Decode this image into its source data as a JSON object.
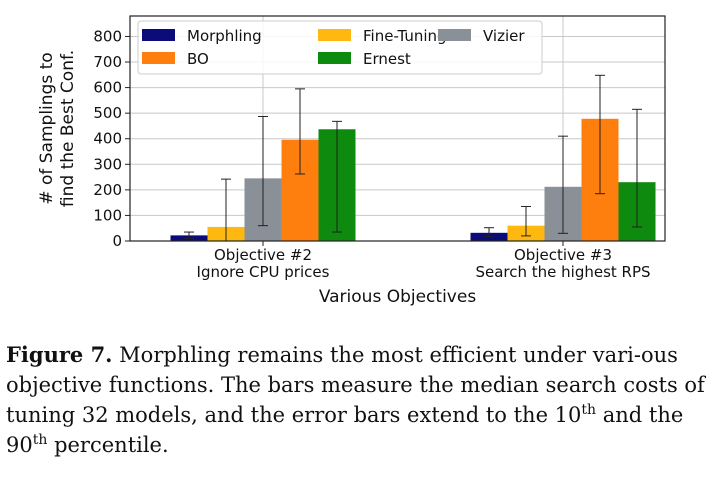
{
  "chart_data": {
    "type": "bar",
    "ylabel": "# of Samplings to\nfind the Best Conf.",
    "xlabel": "Various Objectives",
    "ylim": [
      0,
      880
    ],
    "yticks": [
      0,
      100,
      200,
      300,
      400,
      500,
      600,
      700,
      800
    ],
    "grid": true,
    "legend": "top-left",
    "categories": [
      {
        "label": "Objective #2",
        "sublabel": "Ignore CPU prices"
      },
      {
        "label": "Objective #3",
        "sublabel": "Search the highest RPS"
      }
    ],
    "series": [
      {
        "name": "Morphling",
        "color": "#0b0b7a",
        "values": [
          22,
          32
        ],
        "err_low": [
          10,
          18
        ],
        "err_high": [
          35,
          52
        ]
      },
      {
        "name": "Fine-Tuning",
        "color": "#ffb810",
        "values": [
          55,
          60
        ],
        "err_low": [
          0,
          20
        ],
        "err_high": [
          242,
          135
        ]
      },
      {
        "name": "Vizier",
        "color": "#8a9097",
        "values": [
          245,
          212
        ],
        "err_low": [
          60,
          30
        ],
        "err_high": [
          487,
          410
        ]
      },
      {
        "name": "BO",
        "color": "#ff7f0e",
        "values": [
          396,
          478
        ],
        "err_low": [
          262,
          185
        ],
        "err_high": [
          595,
          648
        ]
      },
      {
        "name": "Ernest",
        "color": "#0e8a0e",
        "values": [
          437,
          230
        ],
        "err_low": [
          35,
          55
        ],
        "err_high": [
          468,
          515
        ]
      }
    ]
  },
  "caption": {
    "figure_label": "Figure 7.",
    "text_1": " Morphling remains the most efficient under vari-ous objective functions. The bars measure the median search costs of tuning 32 models, and the error bars extend to the 10",
    "sup_1": "th",
    "text_2": " and the 90",
    "sup_2": "th",
    "text_3": " percentile."
  }
}
